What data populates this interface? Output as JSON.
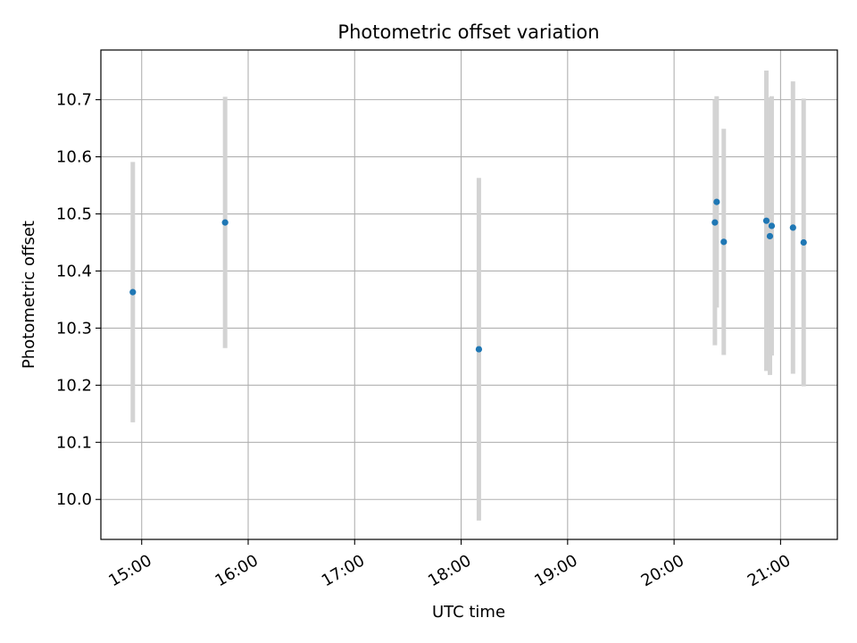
{
  "chart_data": {
    "type": "scatter",
    "title": "Photometric offset variation",
    "xlabel": "UTC time",
    "ylabel": "Photometric offset",
    "xlim": [
      "14:37",
      "21:32"
    ],
    "ylim": [
      9.93,
      10.787
    ],
    "x_ticks": [
      "15:00",
      "16:00",
      "17:00",
      "18:00",
      "19:00",
      "20:00",
      "21:00"
    ],
    "y_ticks": [
      "10.0",
      "10.1",
      "10.2",
      "10.3",
      "10.4",
      "10.5",
      "10.6",
      "10.7"
    ],
    "grid": true,
    "legend": "none",
    "point_color": "#1f77b4",
    "errorbar_color": "#d3d3d3",
    "points": [
      {
        "x": "14:55",
        "y": 10.363,
        "err": 0.228
      },
      {
        "x": "15:47",
        "y": 10.485,
        "err": 0.22
      },
      {
        "x": "18:10",
        "y": 10.263,
        "err": 0.3
      },
      {
        "x": "20:23",
        "y": 10.485,
        "err": 0.215
      },
      {
        "x": "20:24",
        "y": 10.521,
        "err": 0.185
      },
      {
        "x": "20:28",
        "y": 10.451,
        "err": 0.198
      },
      {
        "x": "20:52",
        "y": 10.488,
        "err": 0.263
      },
      {
        "x": "20:54",
        "y": 10.461,
        "err": 0.243
      },
      {
        "x": "20:55",
        "y": 10.479,
        "err": 0.227
      },
      {
        "x": "21:07",
        "y": 10.476,
        "err": 0.256
      },
      {
        "x": "21:13",
        "y": 10.45,
        "err": 0.252
      }
    ]
  }
}
